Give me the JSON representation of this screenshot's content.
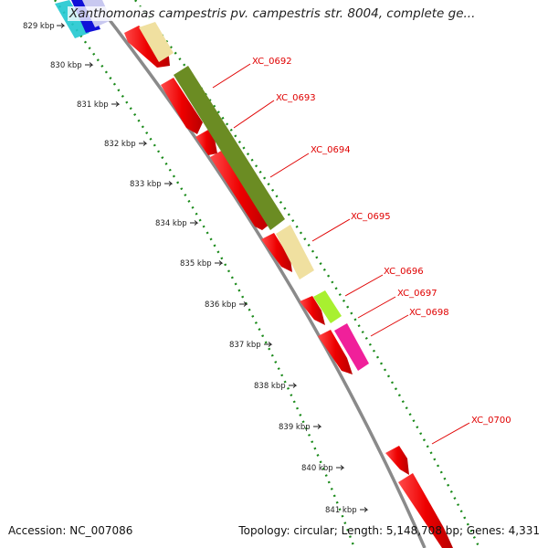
{
  "header": {
    "title": "Xanthomonas campestris pv. campestris str. 8004, complete ge..."
  },
  "footer": {
    "accession": "Accession: NC_007086",
    "summary": "Topology: circular; Length: 5,148,708 bp; Genes: 4,331"
  },
  "map": {
    "tick_labels": [
      "829 kbp",
      "830 kbp",
      "831 kbp",
      "832 kbp",
      "833 kbp",
      "834 kbp",
      "835 kbp",
      "836 kbp",
      "837 kbp",
      "838 kbp",
      "839 kbp",
      "840 kbp",
      "841 kbp"
    ],
    "gene_labels": [
      "XC_0692",
      "XC_0693",
      "XC_0694",
      "XC_0695",
      "XC_0696",
      "XC_0697",
      "XC_0698",
      "XC_0700"
    ],
    "colors": {
      "backbone": "#8a8a8a",
      "gc_dots": "#1a8a1a",
      "gene_red": "#ee0000",
      "gene_olive": "#6b8c23",
      "gene_khaki": "#f0e0a0",
      "gene_lime": "#a8f030",
      "gene_magenta": "#f0209a",
      "gene_cyan": "#20c8d0",
      "gene_blue": "#1010d8",
      "label_red": "#e00000"
    }
  }
}
